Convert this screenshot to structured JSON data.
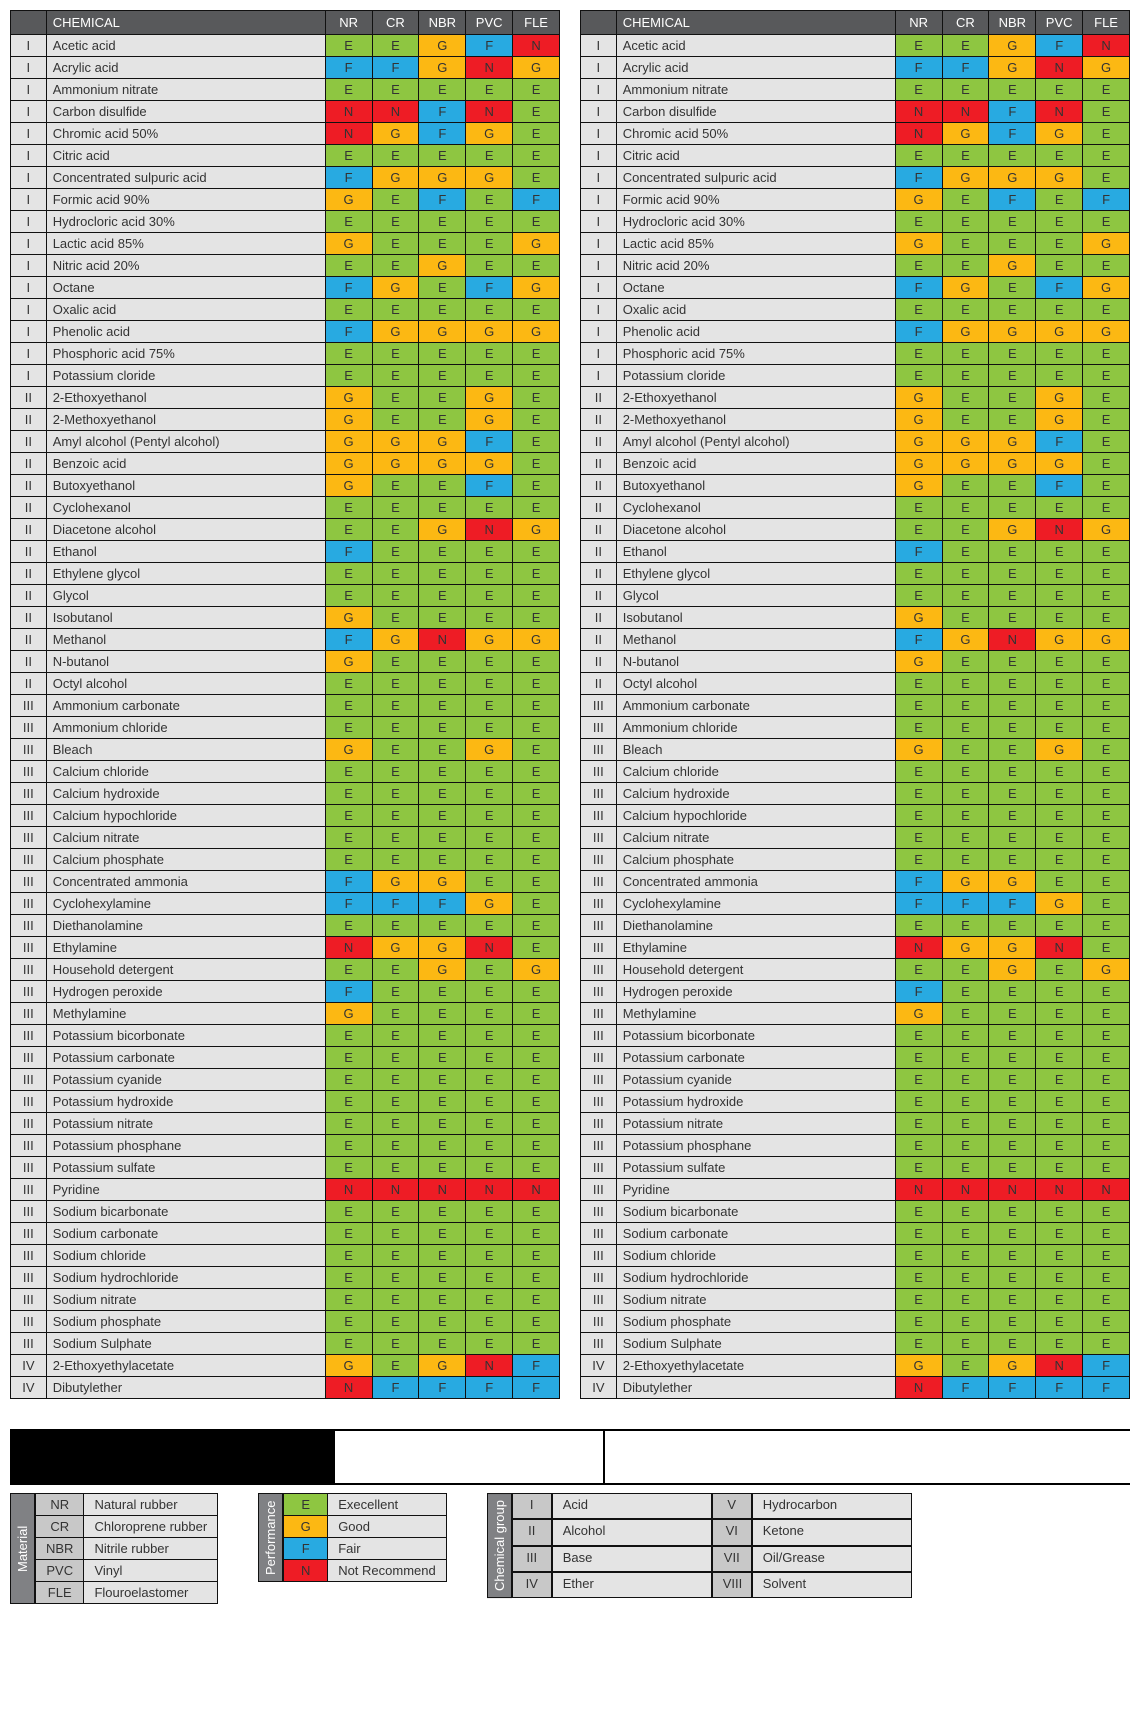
{
  "colors": {
    "E": "#8ec641",
    "G": "#fcb813",
    "F": "#28aae1",
    "N": "#ee1c25",
    "header_bg": "#58595b",
    "header_fg": "#ffffff",
    "cell_bg": "#e4e4e4",
    "border": "#111111"
  },
  "headers": {
    "blank": "",
    "chemical": "CHEMICAL",
    "cols": [
      "NR",
      "CR",
      "NBR",
      "PVC",
      "FLE"
    ]
  },
  "rows_left": [
    {
      "g": "I",
      "n": "Acetic acid",
      "r": [
        "E",
        "E",
        "G",
        "F",
        "N"
      ]
    },
    {
      "g": "I",
      "n": "Acrylic acid",
      "r": [
        "F",
        "F",
        "G",
        "N",
        "G"
      ]
    },
    {
      "g": "I",
      "n": "Ammonium nitrate",
      "r": [
        "E",
        "E",
        "E",
        "E",
        "E"
      ]
    },
    {
      "g": "I",
      "n": "Carbon disulfide",
      "r": [
        "N",
        "N",
        "F",
        "N",
        "E"
      ]
    },
    {
      "g": "I",
      "n": "Chromic acid 50%",
      "r": [
        "N",
        "G",
        "F",
        "G",
        "E"
      ]
    },
    {
      "g": "I",
      "n": "Citric acid",
      "r": [
        "E",
        "E",
        "E",
        "E",
        "E"
      ]
    },
    {
      "g": "I",
      "n": "Concentrated sulpuric acid",
      "r": [
        "F",
        "G",
        "G",
        "G",
        "E"
      ]
    },
    {
      "g": "I",
      "n": "Formic acid 90%",
      "r": [
        "G",
        "E",
        "F",
        "E",
        "F"
      ]
    },
    {
      "g": "I",
      "n": "Hydrocloric acid 30%",
      "r": [
        "E",
        "E",
        "E",
        "E",
        "E"
      ]
    },
    {
      "g": "I",
      "n": "Lactic acid 85%",
      "r": [
        "G",
        "E",
        "E",
        "E",
        "G"
      ]
    },
    {
      "g": "I",
      "n": "Nitric acid 20%",
      "r": [
        "E",
        "E",
        "G",
        "E",
        "E"
      ]
    },
    {
      "g": "I",
      "n": "Octane",
      "r": [
        "F",
        "G",
        "E",
        "F",
        "G"
      ]
    },
    {
      "g": "I",
      "n": "Oxalic acid",
      "r": [
        "E",
        "E",
        "E",
        "E",
        "E"
      ]
    },
    {
      "g": "I",
      "n": "Phenolic acid",
      "r": [
        "F",
        "G",
        "G",
        "G",
        "G"
      ]
    },
    {
      "g": "I",
      "n": "Phosphoric acid 75%",
      "r": [
        "E",
        "E",
        "E",
        "E",
        "E"
      ]
    },
    {
      "g": "I",
      "n": "Potassium cloride",
      "r": [
        "E",
        "E",
        "E",
        "E",
        "E"
      ]
    },
    {
      "g": "II",
      "n": "2-Ethoxyethanol",
      "r": [
        "G",
        "E",
        "E",
        "G",
        "E"
      ]
    },
    {
      "g": "II",
      "n": "2-Methoxyethanol",
      "r": [
        "G",
        "E",
        "E",
        "G",
        "E"
      ]
    },
    {
      "g": "II",
      "n": "Amyl alcohol (Pentyl alcohol)",
      "r": [
        "G",
        "G",
        "G",
        "F",
        "E"
      ]
    },
    {
      "g": "II",
      "n": "Benzoic acid",
      "r": [
        "G",
        "G",
        "G",
        "G",
        "E"
      ]
    },
    {
      "g": "II",
      "n": "Butoxyethanol",
      "r": [
        "G",
        "E",
        "E",
        "F",
        "E"
      ]
    },
    {
      "g": "II",
      "n": "Cyclohexanol",
      "r": [
        "E",
        "E",
        "E",
        "E",
        "E"
      ]
    },
    {
      "g": "II",
      "n": "Diacetone alcohol",
      "r": [
        "E",
        "E",
        "G",
        "N",
        "G"
      ]
    },
    {
      "g": "II",
      "n": "Ethanol",
      "r": [
        "F",
        "E",
        "E",
        "E",
        "E"
      ]
    },
    {
      "g": "II",
      "n": "Ethylene glycol",
      "r": [
        "E",
        "E",
        "E",
        "E",
        "E"
      ]
    },
    {
      "g": "II",
      "n": "Glycol",
      "r": [
        "E",
        "E",
        "E",
        "E",
        "E"
      ]
    },
    {
      "g": "II",
      "n": " Isobutanol",
      "r": [
        "G",
        "E",
        "E",
        "E",
        "E"
      ]
    },
    {
      "g": "II",
      "n": "Methanol",
      "r": [
        "F",
        "G",
        "N",
        "G",
        "G"
      ]
    },
    {
      "g": "II",
      "n": "N-butanol",
      "r": [
        "G",
        "E",
        "E",
        "E",
        "E"
      ]
    },
    {
      "g": "II",
      "n": "Octyl alcohol",
      "r": [
        "E",
        "E",
        "E",
        "E",
        "E"
      ]
    },
    {
      "g": "III",
      "n": "Ammonium carbonate",
      "r": [
        "E",
        "E",
        "E",
        "E",
        "E"
      ]
    },
    {
      "g": "III",
      "n": "Ammonium chloride",
      "r": [
        "E",
        "E",
        "E",
        "E",
        "E"
      ]
    },
    {
      "g": "III",
      "n": "Bleach",
      "r": [
        "G",
        "E",
        "E",
        "G",
        "E"
      ]
    },
    {
      "g": "III",
      "n": "Calcium chloride",
      "r": [
        "E",
        "E",
        "E",
        "E",
        "E"
      ]
    },
    {
      "g": "III",
      "n": "Calcium hydroxide",
      "r": [
        "E",
        "E",
        "E",
        "E",
        "E"
      ]
    },
    {
      "g": "III",
      "n": "Calcium hypochloride",
      "r": [
        "E",
        "E",
        "E",
        "E",
        "E"
      ]
    },
    {
      "g": "III",
      "n": "Calcium nitrate",
      "r": [
        "E",
        "E",
        "E",
        "E",
        "E"
      ]
    },
    {
      "g": "III",
      "n": "Calcium phosphate",
      "r": [
        "E",
        "E",
        "E",
        "E",
        "E"
      ]
    },
    {
      "g": "III",
      "n": "Concentrated ammonia",
      "r": [
        "F",
        "G",
        "G",
        "E",
        "E"
      ]
    },
    {
      "g": "III",
      "n": "Cyclohexylamine",
      "r": [
        "F",
        "F",
        "F",
        "G",
        "E"
      ]
    },
    {
      "g": "III",
      "n": "Diethanolamine",
      "r": [
        "E",
        "E",
        "E",
        "E",
        "E"
      ]
    },
    {
      "g": "III",
      "n": "Ethylamine",
      "r": [
        "N",
        "G",
        "G",
        "N",
        "E"
      ]
    },
    {
      "g": "III",
      "n": "Household detergent",
      "r": [
        "E",
        "E",
        "G",
        "E",
        "G"
      ]
    },
    {
      "g": "III",
      "n": "Hydrogen peroxide",
      "r": [
        "F",
        "E",
        "E",
        "E",
        "E"
      ]
    },
    {
      "g": "III",
      "n": "Methylamine",
      "r": [
        "G",
        "E",
        "E",
        "E",
        "E"
      ]
    },
    {
      "g": "III",
      "n": "Potassium bicorbonate",
      "r": [
        "E",
        "E",
        "E",
        "E",
        "E"
      ]
    },
    {
      "g": "III",
      "n": "Potassium carbonate",
      "r": [
        "E",
        "E",
        "E",
        "E",
        "E"
      ]
    },
    {
      "g": "III",
      "n": "Potassium cyanide",
      "r": [
        "E",
        "E",
        "E",
        "E",
        "E"
      ]
    },
    {
      "g": "III",
      "n": "Potassium hydroxide",
      "r": [
        "E",
        "E",
        "E",
        "E",
        "E"
      ]
    },
    {
      "g": "III",
      "n": "Potassium nitrate",
      "r": [
        "E",
        "E",
        "E",
        "E",
        "E"
      ]
    },
    {
      "g": "III",
      "n": "Potassium phosphane",
      "r": [
        "E",
        "E",
        "E",
        "E",
        "E"
      ]
    },
    {
      "g": "III",
      "n": "Potassium sulfate",
      "r": [
        "E",
        "E",
        "E",
        "E",
        "E"
      ]
    },
    {
      "g": "III",
      "n": "Pyridine",
      "r": [
        "N",
        "N",
        "N",
        "N",
        "N"
      ]
    },
    {
      "g": "III",
      "n": "Sodium bicarbonate",
      "r": [
        "E",
        "E",
        "E",
        "E",
        "E"
      ]
    },
    {
      "g": "III",
      "n": "Sodium carbonate",
      "r": [
        "E",
        "E",
        "E",
        "E",
        "E"
      ]
    },
    {
      "g": "III",
      "n": "Sodium chloride",
      "r": [
        "E",
        "E",
        "E",
        "E",
        "E"
      ]
    },
    {
      "g": "III",
      "n": "Sodium hydrochloride",
      "r": [
        "E",
        "E",
        "E",
        "E",
        "E"
      ]
    },
    {
      "g": "III",
      "n": "Sodium nitrate",
      "r": [
        "E",
        "E",
        "E",
        "E",
        "E"
      ]
    },
    {
      "g": "III",
      "n": "Sodium phosphate",
      "r": [
        "E",
        "E",
        "E",
        "E",
        "E"
      ]
    },
    {
      "g": "III",
      "n": "Sodium Sulphate",
      "r": [
        "E",
        "E",
        "E",
        "E",
        "E"
      ]
    },
    {
      "g": "IV",
      "n": "2-Ethoxyethylacetate",
      "r": [
        "G",
        "E",
        "G",
        "N",
        "F"
      ]
    },
    {
      "g": "IV",
      "n": "Dibutylether",
      "r": [
        "N",
        "F",
        "F",
        "F",
        "F"
      ]
    }
  ],
  "rows_right": [
    {
      "g": "I",
      "n": "Acetic acid",
      "r": [
        "E",
        "E",
        "G",
        "F",
        "N"
      ]
    },
    {
      "g": "I",
      "n": "Acrylic acid",
      "r": [
        "F",
        "F",
        "G",
        "N",
        "G"
      ]
    },
    {
      "g": "I",
      "n": "Ammonium nitrate",
      "r": [
        "E",
        "E",
        "E",
        "E",
        "E"
      ]
    },
    {
      "g": "I",
      "n": "Carbon disulfide",
      "r": [
        "N",
        "N",
        "F",
        "N",
        "E"
      ]
    },
    {
      "g": "I",
      "n": "Chromic acid 50%",
      "r": [
        "N",
        "G",
        "F",
        "G",
        "E"
      ]
    },
    {
      "g": "I",
      "n": "Citric acid",
      "r": [
        "E",
        "E",
        "E",
        "E",
        "E"
      ]
    },
    {
      "g": "I",
      "n": "Concentrated sulpuric acid",
      "r": [
        "F",
        "G",
        "G",
        "G",
        "E"
      ]
    },
    {
      "g": "I",
      "n": "Formic acid 90%",
      "r": [
        "G",
        "E",
        "F",
        "E",
        "F"
      ]
    },
    {
      "g": "I",
      "n": "Hydrocloric acid 30%",
      "r": [
        "E",
        "E",
        "E",
        "E",
        "E"
      ]
    },
    {
      "g": "I",
      "n": "Lactic acid 85%",
      "r": [
        "G",
        "E",
        "E",
        "E",
        "G"
      ]
    },
    {
      "g": "I",
      "n": "Nitric acid 20%",
      "r": [
        "E",
        "E",
        "G",
        "E",
        "E"
      ]
    },
    {
      "g": "I",
      "n": "Octane",
      "r": [
        "F",
        "G",
        "E",
        "F",
        "G"
      ]
    },
    {
      "g": "I",
      "n": "Oxalic acid",
      "r": [
        "E",
        "E",
        "E",
        "E",
        "E"
      ]
    },
    {
      "g": "I",
      "n": "Phenolic acid",
      "r": [
        "F",
        "G",
        "G",
        "G",
        "G"
      ]
    },
    {
      "g": "I",
      "n": "Phosphoric acid 75%",
      "r": [
        "E",
        "E",
        "E",
        "E",
        "E"
      ]
    },
    {
      "g": "I",
      "n": "Potassium cloride",
      "r": [
        "E",
        "E",
        "E",
        "E",
        "E"
      ]
    },
    {
      "g": "II",
      "n": "2-Ethoxyethanol",
      "r": [
        "G",
        "E",
        "E",
        "G",
        "E"
      ]
    },
    {
      "g": "II",
      "n": "2-Methoxyethanol",
      "r": [
        "G",
        "E",
        "E",
        "G",
        "E"
      ]
    },
    {
      "g": "II",
      "n": "Amyl alcohol (Pentyl alcohol)",
      "r": [
        "G",
        "G",
        "G",
        "F",
        "E"
      ]
    },
    {
      "g": "II",
      "n": "Benzoic acid",
      "r": [
        "G",
        "G",
        "G",
        "G",
        "E"
      ]
    },
    {
      "g": "II",
      "n": "Butoxyethanol",
      "r": [
        "G",
        "E",
        "E",
        "F",
        "E"
      ]
    },
    {
      "g": "II",
      "n": "Cyclohexanol",
      "r": [
        "E",
        "E",
        "E",
        "E",
        "E"
      ]
    },
    {
      "g": "II",
      "n": "Diacetone alcohol",
      "r": [
        "E",
        "E",
        "G",
        "N",
        "G"
      ]
    },
    {
      "g": "II",
      "n": "Ethanol",
      "r": [
        "F",
        "E",
        "E",
        "E",
        "E"
      ]
    },
    {
      "g": "II",
      "n": "Ethylene glycol",
      "r": [
        "E",
        "E",
        "E",
        "E",
        "E"
      ]
    },
    {
      "g": "II",
      "n": "Glycol",
      "r": [
        "E",
        "E",
        "E",
        "E",
        "E"
      ]
    },
    {
      "g": "II",
      "n": " Isobutanol",
      "r": [
        "G",
        "E",
        "E",
        "E",
        "E"
      ]
    },
    {
      "g": "II",
      "n": "Methanol",
      "r": [
        "F",
        "G",
        "N",
        "G",
        "G"
      ]
    },
    {
      "g": "II",
      "n": "N-butanol",
      "r": [
        "G",
        "E",
        "E",
        "E",
        "E"
      ]
    },
    {
      "g": "II",
      "n": "Octyl alcohol",
      "r": [
        "E",
        "E",
        "E",
        "E",
        "E"
      ]
    },
    {
      "g": "III",
      "n": "Ammonium carbonate",
      "r": [
        "E",
        "E",
        "E",
        "E",
        "E"
      ]
    },
    {
      "g": "III",
      "n": "Ammonium chloride",
      "r": [
        "E",
        "E",
        "E",
        "E",
        "E"
      ]
    },
    {
      "g": "III",
      "n": "Bleach",
      "r": [
        "G",
        "E",
        "E",
        "G",
        "E"
      ]
    },
    {
      "g": "III",
      "n": "Calcium chloride",
      "r": [
        "E",
        "E",
        "E",
        "E",
        "E"
      ]
    },
    {
      "g": "III",
      "n": "Calcium hydroxide",
      "r": [
        "E",
        "E",
        "E",
        "E",
        "E"
      ]
    },
    {
      "g": "III",
      "n": "Calcium hypochloride",
      "r": [
        "E",
        "E",
        "E",
        "E",
        "E"
      ]
    },
    {
      "g": "III",
      "n": "Calcium nitrate",
      "r": [
        "E",
        "E",
        "E",
        "E",
        "E"
      ]
    },
    {
      "g": "III",
      "n": "Calcium phosphate",
      "r": [
        "E",
        "E",
        "E",
        "E",
        "E"
      ]
    },
    {
      "g": "III",
      "n": "Concentrated ammonia",
      "r": [
        "F",
        "G",
        "G",
        "E",
        "E"
      ]
    },
    {
      "g": "III",
      "n": "Cyclohexylamine",
      "r": [
        "F",
        "F",
        "F",
        "G",
        "E"
      ]
    },
    {
      "g": "III",
      "n": "Diethanolamine",
      "r": [
        "E",
        "E",
        "E",
        "E",
        "E"
      ]
    },
    {
      "g": "III",
      "n": "Ethylamine",
      "r": [
        "N",
        "G",
        "G",
        "N",
        "E"
      ]
    },
    {
      "g": "III",
      "n": "Household detergent",
      "r": [
        "E",
        "E",
        "G",
        "E",
        "G"
      ]
    },
    {
      "g": "III",
      "n": "Hydrogen peroxide",
      "r": [
        "F",
        "E",
        "E",
        "E",
        "E"
      ]
    },
    {
      "g": "III",
      "n": "Methylamine",
      "r": [
        "G",
        "E",
        "E",
        "E",
        "E"
      ]
    },
    {
      "g": "III",
      "n": "Potassium bicorbonate",
      "r": [
        "E",
        "E",
        "E",
        "E",
        "E"
      ]
    },
    {
      "g": "III",
      "n": "Potassium carbonate",
      "r": [
        "E",
        "E",
        "E",
        "E",
        "E"
      ]
    },
    {
      "g": "III",
      "n": "Potassium cyanide",
      "r": [
        "E",
        "E",
        "E",
        "E",
        "E"
      ]
    },
    {
      "g": "III",
      "n": "Potassium hydroxide",
      "r": [
        "E",
        "E",
        "E",
        "E",
        "E"
      ]
    },
    {
      "g": "III",
      "n": "Potassium nitrate",
      "r": [
        "E",
        "E",
        "E",
        "E",
        "E"
      ]
    },
    {
      "g": "III",
      "n": "Potassium phosphane",
      "r": [
        "E",
        "E",
        "E",
        "E",
        "E"
      ]
    },
    {
      "g": "III",
      "n": "Potassium sulfate",
      "r": [
        "E",
        "E",
        "E",
        "E",
        "E"
      ]
    },
    {
      "g": "III",
      "n": "Pyridine",
      "r": [
        "N",
        "N",
        "N",
        "N",
        "N"
      ]
    },
    {
      "g": "III",
      "n": "Sodium bicarbonate",
      "r": [
        "E",
        "E",
        "E",
        "E",
        "E"
      ]
    },
    {
      "g": "III",
      "n": "Sodium carbonate",
      "r": [
        "E",
        "E",
        "E",
        "E",
        "E"
      ]
    },
    {
      "g": "III",
      "n": "Sodium chloride",
      "r": [
        "E",
        "E",
        "E",
        "E",
        "E"
      ]
    },
    {
      "g": "III",
      "n": "Sodium hydrochloride",
      "r": [
        "E",
        "E",
        "E",
        "E",
        "E"
      ]
    },
    {
      "g": "III",
      "n": "Sodium nitrate",
      "r": [
        "E",
        "E",
        "E",
        "E",
        "E"
      ]
    },
    {
      "g": "III",
      "n": "Sodium phosphate",
      "r": [
        "E",
        "E",
        "E",
        "E",
        "E"
      ]
    },
    {
      "g": "III",
      "n": "Sodium Sulphate",
      "r": [
        "E",
        "E",
        "E",
        "E",
        "E"
      ]
    },
    {
      "g": "IV",
      "n": "2-Ethoxyethylacetate",
      "r": [
        "G",
        "E",
        "G",
        "N",
        "F"
      ]
    },
    {
      "g": "IV",
      "n": "Dibutylether",
      "r": [
        "N",
        "F",
        "F",
        "F",
        "F"
      ]
    }
  ],
  "legend_material": {
    "title": "Material",
    "rows": [
      [
        "NR",
        "Natural rubber"
      ],
      [
        "CR",
        "Chloroprene rubber"
      ],
      [
        "NBR",
        "Nitrile rubber"
      ],
      [
        "PVC",
        "Vinyl"
      ],
      [
        "FLE",
        "Flouroelastomer"
      ]
    ]
  },
  "legend_performance": {
    "title": "Performance",
    "rows": [
      [
        "E",
        "Execellent"
      ],
      [
        "G",
        "Good"
      ],
      [
        "F",
        "Fair"
      ],
      [
        "N",
        "Not Recommend"
      ]
    ]
  },
  "legend_group": {
    "title": "Chemical group",
    "rows": [
      [
        "I",
        "Acid",
        "V",
        "Hydrocarbon"
      ],
      [
        "II",
        "Alcohol",
        "VI",
        "Ketone"
      ],
      [
        "III",
        "Base",
        "VII",
        "Oil/Grease"
      ],
      [
        "IV",
        "Ether",
        "VIII",
        "Solvent"
      ]
    ]
  }
}
